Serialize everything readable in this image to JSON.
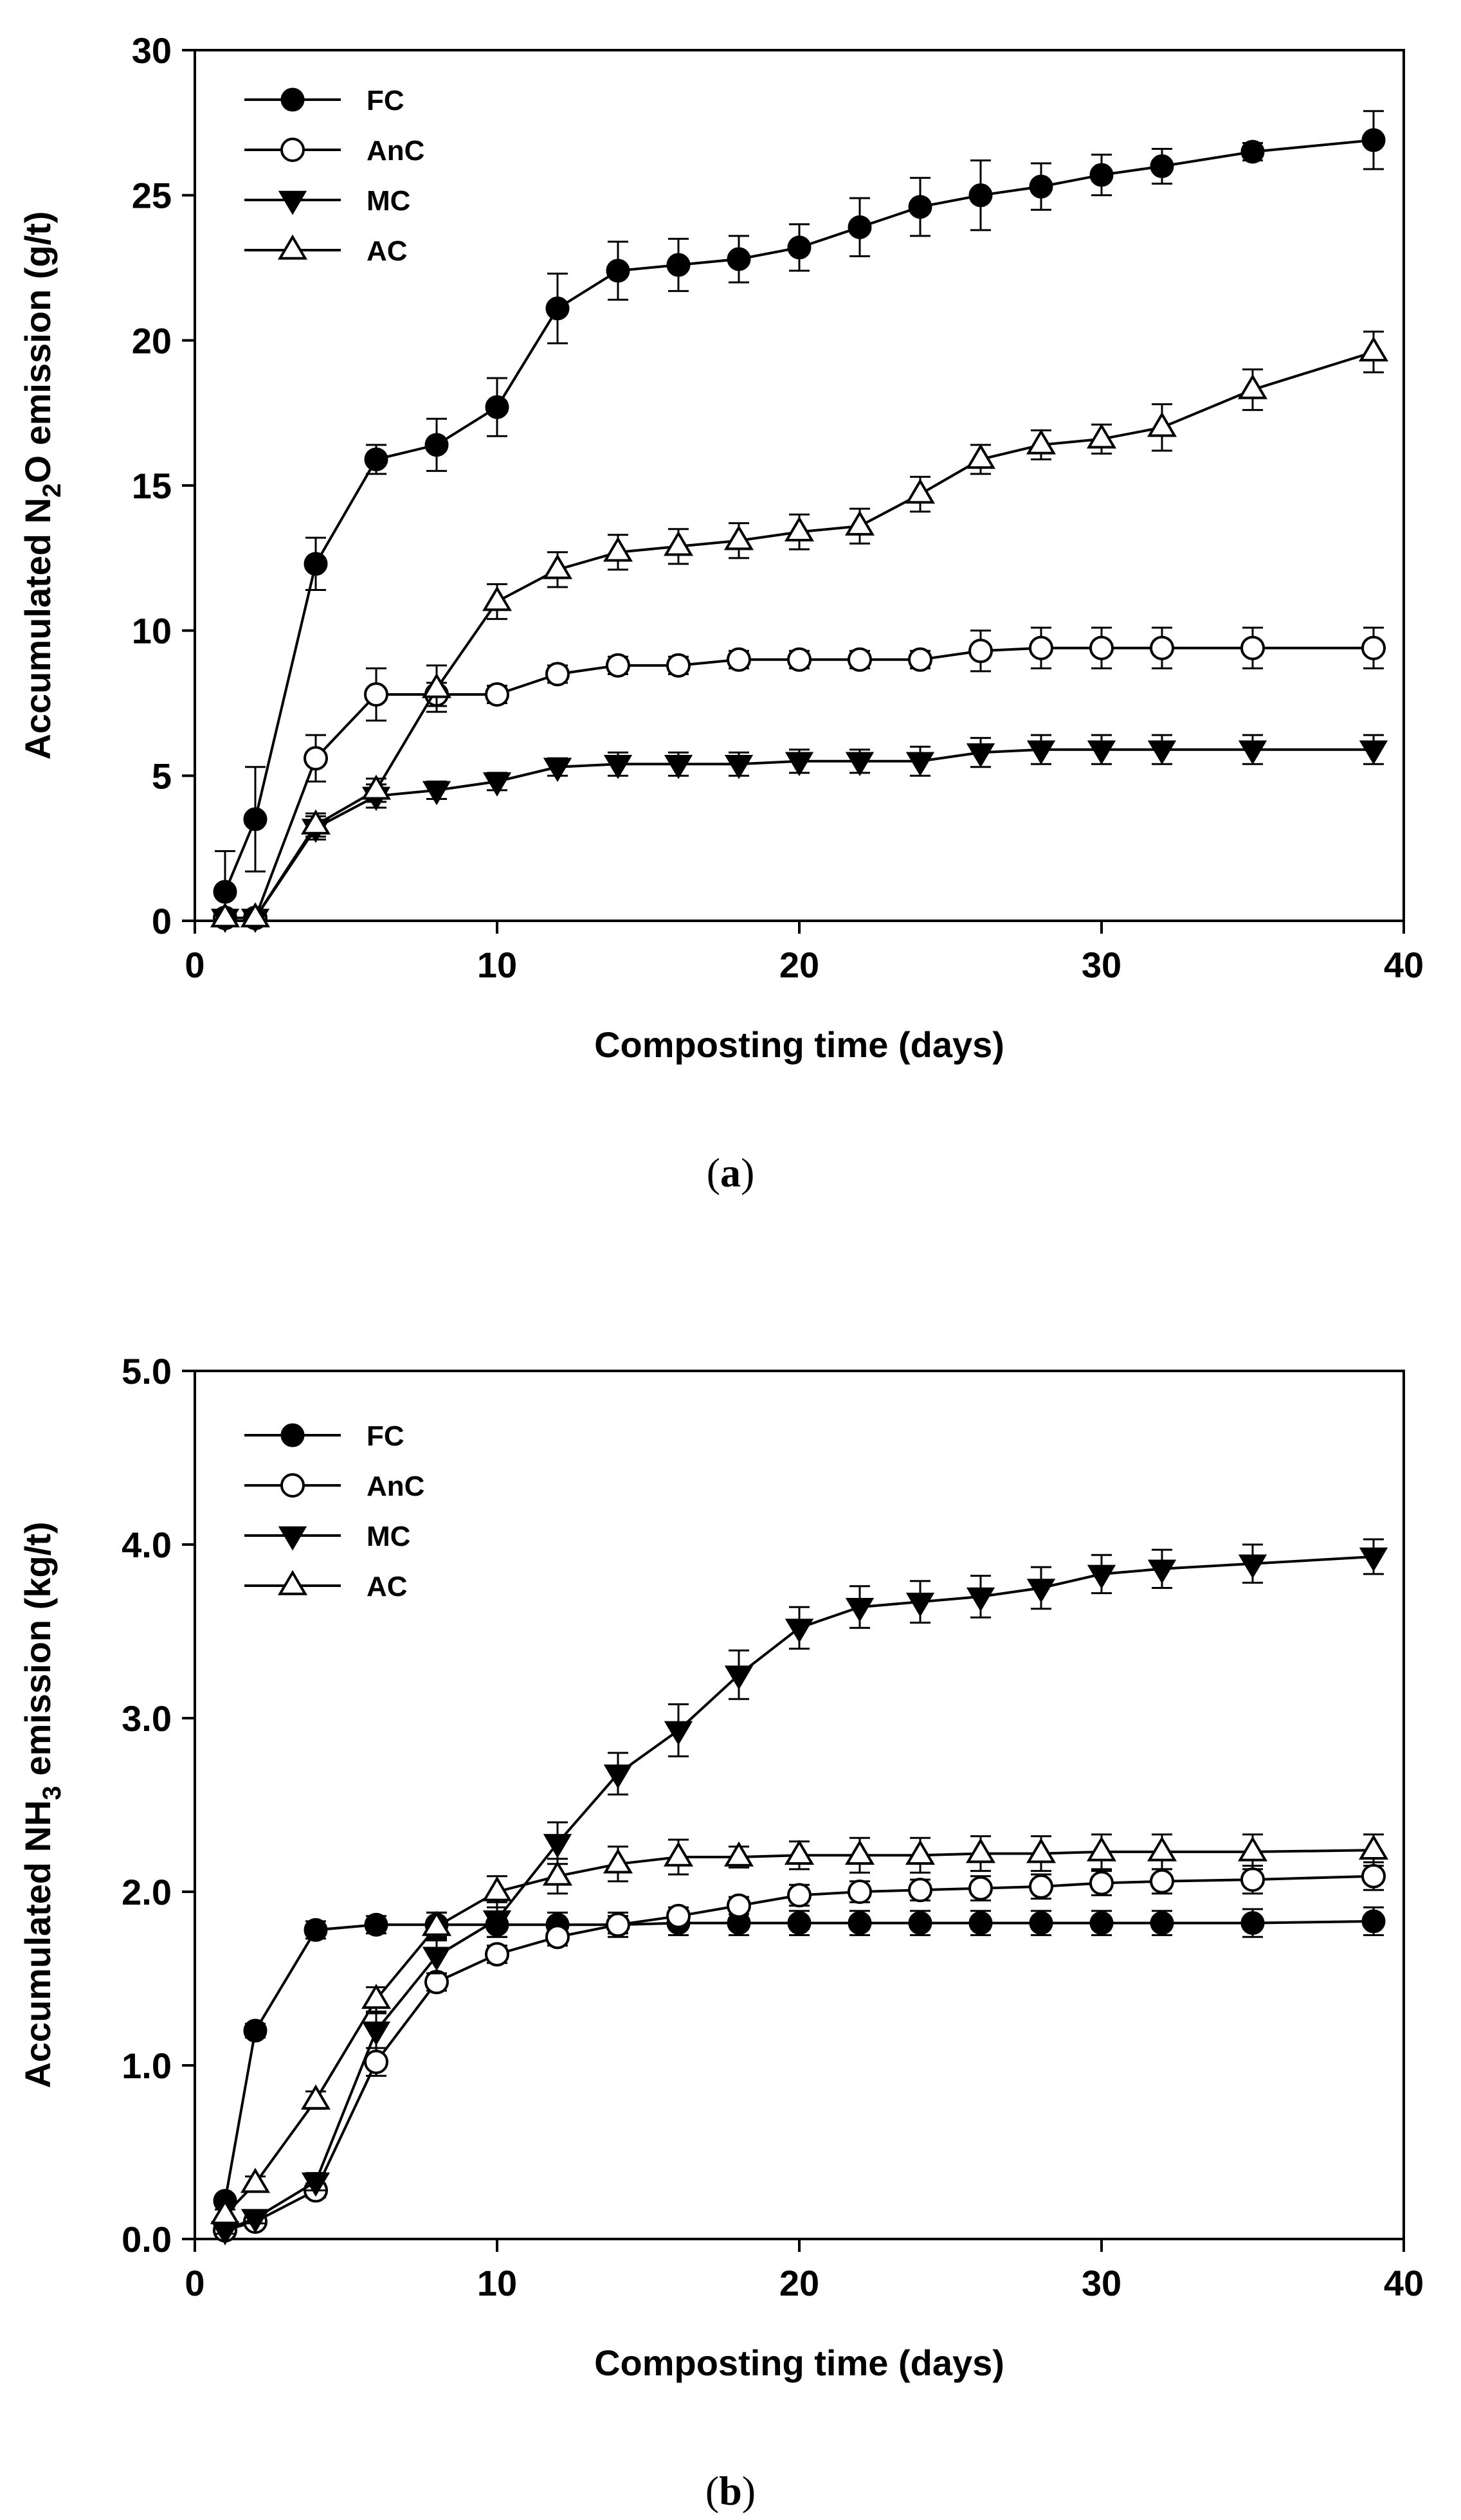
{
  "chart_data": [
    {
      "type": "line",
      "caption_letter": "a",
      "xlabel": "Composting time (days)",
      "ylabel_main": "Accumulated N",
      "ylabel_sub": "2",
      "ylabel_rest": "O emission (g/t)",
      "xlim": [
        0,
        40
      ],
      "ylim": [
        0,
        30
      ],
      "xticks": [
        0,
        10,
        20,
        30,
        40
      ],
      "yticks": [
        0,
        5,
        10,
        15,
        20,
        25,
        30
      ],
      "ytick_labels": [
        "0",
        "5",
        "10",
        "15",
        "20",
        "25",
        "30"
      ],
      "x": [
        1,
        2,
        4,
        6,
        8,
        10,
        12,
        14,
        16,
        18,
        20,
        22,
        24,
        26,
        28,
        30,
        32,
        35,
        39
      ],
      "legend_position": "top-left",
      "series": [
        {
          "name": "FC",
          "marker": "circle-filled",
          "values": [
            1.0,
            3.5,
            12.3,
            15.9,
            16.4,
            17.7,
            21.1,
            22.4,
            22.6,
            22.8,
            23.2,
            23.9,
            24.6,
            25.0,
            25.3,
            25.7,
            26.0,
            26.5,
            26.9
          ],
          "errors": [
            1.4,
            1.8,
            0.9,
            0.5,
            0.9,
            1.0,
            1.2,
            1.0,
            0.9,
            0.8,
            0.8,
            1.0,
            1.0,
            1.2,
            0.8,
            0.7,
            0.6,
            0.3,
            1.0
          ]
        },
        {
          "name": "AnC",
          "marker": "circle-open",
          "values": [
            0.1,
            0.1,
            5.6,
            7.8,
            7.8,
            7.8,
            8.5,
            8.8,
            8.8,
            9.0,
            9.0,
            9.0,
            9.0,
            9.3,
            9.4,
            9.4,
            9.4,
            9.4,
            9.4
          ],
          "errors": [
            0.2,
            0.2,
            0.8,
            0.9,
            0.4,
            0.3,
            0.3,
            0.3,
            0.3,
            0.3,
            0.3,
            0.3,
            0.3,
            0.7,
            0.7,
            0.7,
            0.7,
            0.7,
            0.7
          ]
        },
        {
          "name": "MC",
          "marker": "triangle-down-filled",
          "values": [
            0.1,
            0.1,
            3.2,
            4.3,
            4.5,
            4.8,
            5.3,
            5.4,
            5.4,
            5.4,
            5.5,
            5.5,
            5.5,
            5.8,
            5.9,
            5.9,
            5.9,
            5.9,
            5.9
          ],
          "errors": [
            0.1,
            0.1,
            0.4,
            0.4,
            0.3,
            0.3,
            0.3,
            0.4,
            0.4,
            0.4,
            0.4,
            0.4,
            0.5,
            0.5,
            0.5,
            0.5,
            0.5,
            0.5,
            0.5
          ]
        },
        {
          "name": "AC",
          "marker": "triangle-up-open",
          "values": [
            0.1,
            0.1,
            3.3,
            4.5,
            8.0,
            11.0,
            12.1,
            12.7,
            12.9,
            13.1,
            13.4,
            13.6,
            14.7,
            15.9,
            16.4,
            16.6,
            17.0,
            18.3,
            19.6
          ],
          "errors": [
            0.2,
            0.2,
            0.4,
            0.4,
            0.8,
            0.6,
            0.6,
            0.6,
            0.6,
            0.6,
            0.6,
            0.6,
            0.6,
            0.5,
            0.5,
            0.5,
            0.8,
            0.7,
            0.7
          ]
        }
      ]
    },
    {
      "type": "line",
      "caption_letter": "b",
      "xlabel": "Composting time (days)",
      "ylabel_main": "Accumulated NH",
      "ylabel_sub": "3",
      "ylabel_rest": " emission (kg/t)",
      "xlim": [
        0,
        40
      ],
      "ylim": [
        0,
        5
      ],
      "xticks": [
        0,
        10,
        20,
        30,
        40
      ],
      "yticks": [
        0,
        1,
        2,
        3,
        4,
        5
      ],
      "ytick_labels": [
        "0.0",
        "1.0",
        "2.0",
        "3.0",
        "4.0",
        "5.0"
      ],
      "x": [
        1,
        2,
        4,
        6,
        8,
        10,
        12,
        14,
        16,
        18,
        20,
        22,
        24,
        26,
        28,
        30,
        32,
        35,
        39
      ],
      "legend_position": "top-left",
      "series": [
        {
          "name": "FC",
          "marker": "circle-filled",
          "values": [
            0.22,
            1.2,
            1.78,
            1.81,
            1.81,
            1.81,
            1.81,
            1.81,
            1.82,
            1.82,
            1.82,
            1.82,
            1.82,
            1.82,
            1.82,
            1.82,
            1.82,
            1.82,
            1.83
          ],
          "errors": [
            0.03,
            0.04,
            0.05,
            0.05,
            0.07,
            0.07,
            0.07,
            0.07,
            0.07,
            0.07,
            0.07,
            0.07,
            0.07,
            0.07,
            0.07,
            0.07,
            0.07,
            0.08,
            0.08
          ]
        },
        {
          "name": "AnC",
          "marker": "circle-open",
          "values": [
            0.05,
            0.1,
            0.28,
            1.02,
            1.48,
            1.64,
            1.74,
            1.81,
            1.86,
            1.92,
            1.98,
            2.0,
            2.01,
            2.02,
            2.03,
            2.05,
            2.06,
            2.07,
            2.09
          ],
          "errors": [
            0.02,
            0.03,
            0.04,
            0.08,
            0.05,
            0.05,
            0.05,
            0.05,
            0.05,
            0.05,
            0.06,
            0.06,
            0.06,
            0.07,
            0.07,
            0.07,
            0.07,
            0.08,
            0.08
          ]
        },
        {
          "name": "MC",
          "marker": "triangle-down-filled",
          "values": [
            0.05,
            0.12,
            0.33,
            1.2,
            1.63,
            1.84,
            2.28,
            2.68,
            2.93,
            3.25,
            3.52,
            3.64,
            3.67,
            3.7,
            3.75,
            3.83,
            3.86,
            3.89,
            3.93
          ],
          "errors": [
            0.02,
            0.03,
            0.05,
            0.1,
            0.1,
            0.1,
            0.12,
            0.12,
            0.15,
            0.14,
            0.12,
            0.12,
            0.12,
            0.12,
            0.12,
            0.11,
            0.11,
            0.11,
            0.1
          ]
        },
        {
          "name": "AC",
          "marker": "triangle-up-open",
          "values": [
            0.14,
            0.32,
            0.8,
            1.38,
            1.8,
            2.0,
            2.09,
            2.16,
            2.2,
            2.2,
            2.21,
            2.21,
            2.21,
            2.22,
            2.22,
            2.23,
            2.23,
            2.23,
            2.24
          ],
          "errors": [
            0.03,
            0.04,
            0.05,
            0.07,
            0.08,
            0.09,
            0.1,
            0.1,
            0.1,
            0.06,
            0.08,
            0.1,
            0.1,
            0.1,
            0.1,
            0.1,
            0.1,
            0.1,
            0.09
          ]
        }
      ]
    }
  ]
}
